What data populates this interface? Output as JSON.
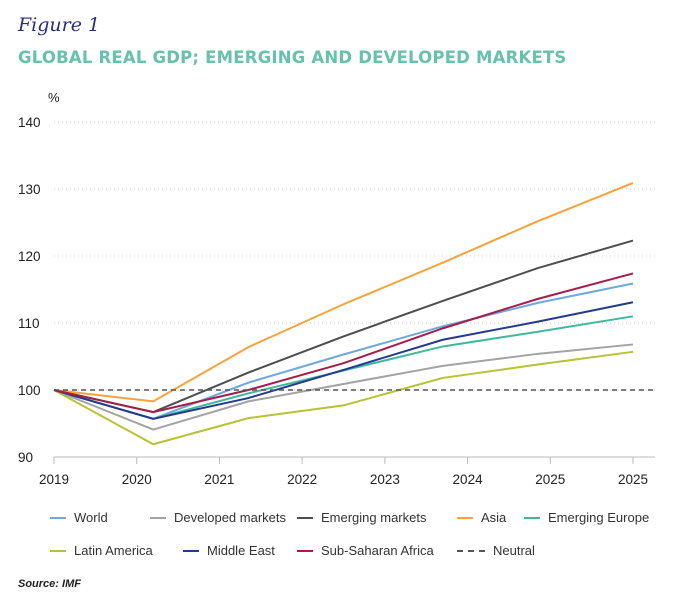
{
  "figure_label": "Figure 1",
  "source": "Source: IMF",
  "chart_data": {
    "type": "line",
    "title": "GLOBAL REAL GDP; EMERGING AND DEVELOPED MARKETS",
    "ylabel": "%",
    "ylim": [
      90,
      140
    ],
    "yticks": [
      90,
      100,
      110,
      120,
      130,
      140
    ],
    "xtick_labels": [
      "2019",
      "2020",
      "2021",
      "2022",
      "2023",
      "2024",
      "2025",
      "2025"
    ],
    "x": [
      0,
      1.2,
      2.35,
      3.5,
      4.7,
      5.85,
      7
    ],
    "grid": "horizontal dotted",
    "legend_position": "bottom",
    "series": [
      {
        "name": "World",
        "color": "#6fa8dc",
        "values": [
          100,
          95.7,
          101.1,
          105.3,
          109.5,
          113.0,
          115.9
        ]
      },
      {
        "name": "Developed markets",
        "color": "#a3a3a3",
        "values": [
          100,
          94.1,
          98.3,
          100.9,
          103.6,
          105.4,
          106.8
        ]
      },
      {
        "name": "Emerging markets",
        "color": "#4d4d4d",
        "values": [
          100,
          96.7,
          102.6,
          108.0,
          113.3,
          118.2,
          122.3
        ]
      },
      {
        "name": "Asia",
        "color": "#f7a23b",
        "values": [
          100,
          98.3,
          106.4,
          112.8,
          119.0,
          125.2,
          130.9
        ]
      },
      {
        "name": "Emerging Europe",
        "color": "#3fb8a0",
        "values": [
          100,
          95.7,
          99.5,
          102.9,
          106.5,
          108.7,
          111.0
        ]
      },
      {
        "name": "Latin America",
        "color": "#b5c334",
        "values": [
          100,
          91.9,
          95.8,
          97.7,
          101.8,
          103.8,
          105.7
        ]
      },
      {
        "name": "Middle East",
        "color": "#243a8c",
        "values": [
          100,
          95.7,
          98.8,
          103.0,
          107.5,
          110.2,
          113.1
        ]
      },
      {
        "name": "Sub-Saharan Africa",
        "color": "#a51d4a",
        "values": [
          100,
          96.7,
          100.0,
          104.0,
          109.2,
          113.6,
          117.4
        ]
      },
      {
        "name": "Neutral",
        "color": "#555555",
        "dashed": true,
        "values": [
          100,
          100,
          100,
          100,
          100,
          100,
          100
        ]
      }
    ]
  }
}
